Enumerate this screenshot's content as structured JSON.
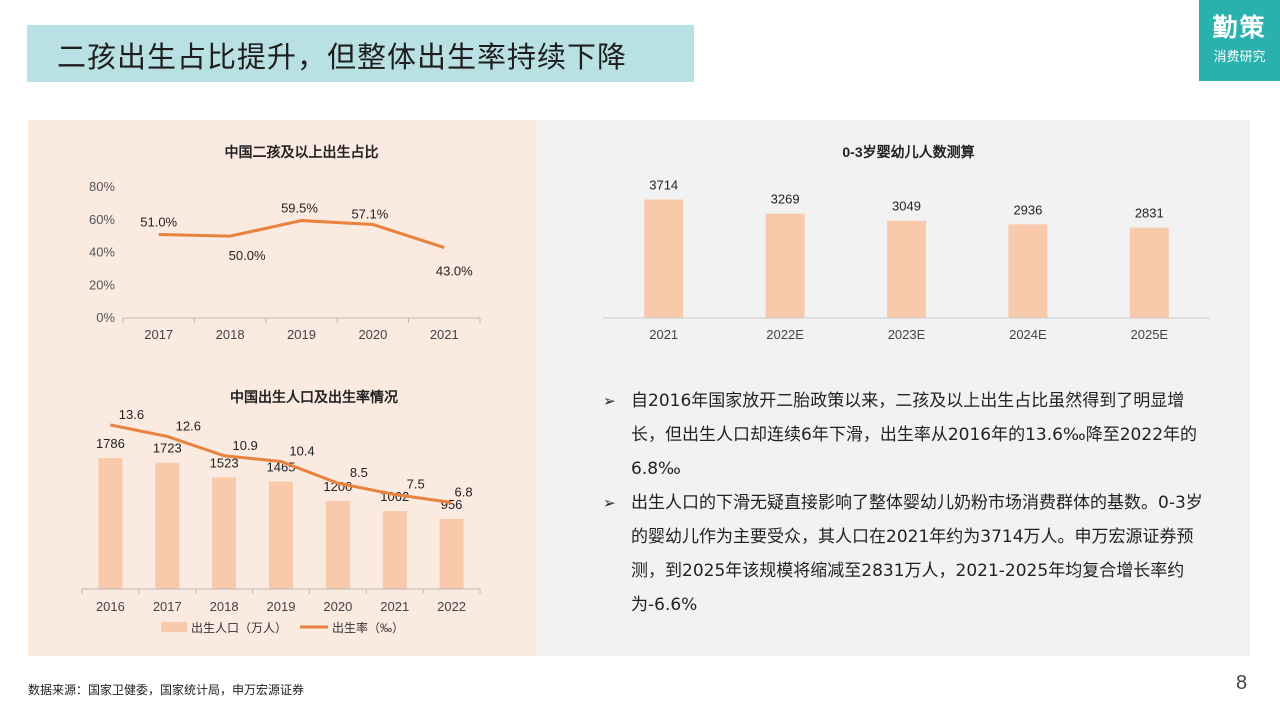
{
  "slide": {
    "title": "二孩出生占比提升，但整体出生率持续下降",
    "logo_main": "勤策",
    "logo_sub": "消费研究",
    "source": "数据来源：国家卫健委，国家统计局，申万宏源证券",
    "page_number": "8",
    "accent_color": "#2ab0ad",
    "title_bg": "#b9e1e4"
  },
  "bullets": [
    "自2016年国家放开二胎政策以来，二孩及以上出生占比虽然得到了明显增长，但出生人口却连续6年下滑，出生率从2016年的13.6‰降至2022年的6.8‰",
    "出生人口的下滑无疑直接影响了整体婴幼儿奶粉市场消费群体的基数。0-3岁的婴幼儿作为主要受众，其人口在2021年约为3714万人。申万宏源证券预测，到2025年该规模将缩减至2831万人，2021-2025年均复合增长率约为-6.6%"
  ],
  "chart_data": [
    {
      "type": "line",
      "title": "中国二孩及以上出生占比",
      "categories": [
        "2017",
        "2018",
        "2019",
        "2020",
        "2021"
      ],
      "values": [
        51.0,
        50.0,
        59.5,
        57.1,
        43.0
      ],
      "value_labels": [
        "51.0%",
        "50.0%",
        "59.5%",
        "57.1%",
        "43.0%"
      ],
      "y_ticks": [
        "0%",
        "20%",
        "40%",
        "60%",
        "80%"
      ],
      "ylim": [
        0,
        80
      ],
      "color": "#e8823d"
    },
    {
      "type": "bar",
      "title": "中国出生人口及出生率情况",
      "categories": [
        "2016",
        "2017",
        "2018",
        "2019",
        "2020",
        "2021",
        "2022"
      ],
      "series": [
        {
          "name": "出生人口（万人）",
          "type": "bar",
          "values": [
            1786,
            1723,
            1523,
            1465,
            1200,
            1062,
            956
          ],
          "color": "#f8c9aa"
        },
        {
          "name": "出生率（‰）",
          "type": "line",
          "values": [
            13.6,
            12.6,
            10.9,
            10.4,
            8.5,
            7.5,
            6.8
          ],
          "color": "#e8823d"
        }
      ],
      "legend": "bottom"
    },
    {
      "type": "bar",
      "title": "0-3岁婴幼儿人数测算",
      "categories": [
        "2021",
        "2022E",
        "2023E",
        "2024E",
        "2025E"
      ],
      "values": [
        3714,
        3269,
        3049,
        2936,
        2831
      ],
      "color": "#f8c9aa"
    }
  ]
}
